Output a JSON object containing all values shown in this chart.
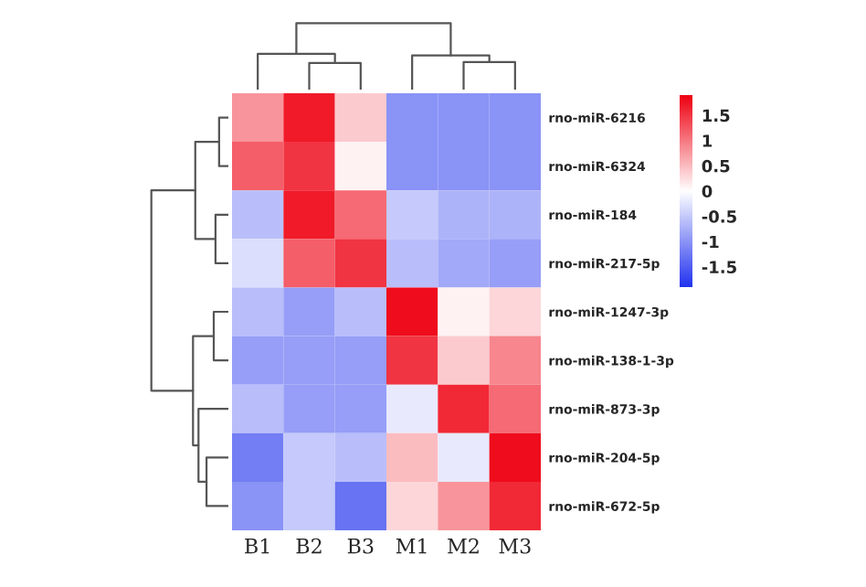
{
  "chart_data": {
    "type": "heatmap",
    "categories": [
      "B1",
      "B2",
      "B3",
      "M1",
      "M2",
      "M3"
    ],
    "y_categories": [
      "rno-miR-6216",
      "rno-miR-6324",
      "rno-miR-184",
      "rno-miR-217-5p",
      "rno-miR-1247-3p",
      "rno-miR-138-1-3p",
      "rno-miR-873-3p",
      "rno-miR-204-5p",
      "rno-miR-672-5p"
    ],
    "cells": [
      [
        0.8,
        1.7,
        0.4,
        -1.0,
        -1.0,
        -1.0
      ],
      [
        1.2,
        1.5,
        0.1,
        -1.0,
        -1.0,
        -1.0
      ],
      [
        -0.6,
        1.7,
        1.1,
        -0.5,
        -0.7,
        -0.7
      ],
      [
        -0.3,
        1.2,
        1.5,
        -0.6,
        -0.8,
        -0.9
      ],
      [
        -0.6,
        -0.9,
        -0.6,
        1.8,
        0.1,
        0.3
      ],
      [
        -0.9,
        -0.9,
        -0.9,
        1.5,
        0.4,
        0.9
      ],
      [
        -0.6,
        -0.9,
        -0.9,
        -0.2,
        1.6,
        1.1
      ],
      [
        -1.2,
        -0.5,
        -0.6,
        0.5,
        -0.2,
        1.8
      ],
      [
        -1.0,
        -0.5,
        -1.3,
        0.3,
        0.8,
        1.6
      ]
    ],
    "clim": [
      -1.9,
      1.9
    ],
    "cticks": [
      -1.5,
      -1,
      -0.5,
      0,
      0.5,
      1,
      1.5
    ],
    "colors": [
      "#2233ee",
      "#ffffff",
      "#ee0011"
    ]
  }
}
